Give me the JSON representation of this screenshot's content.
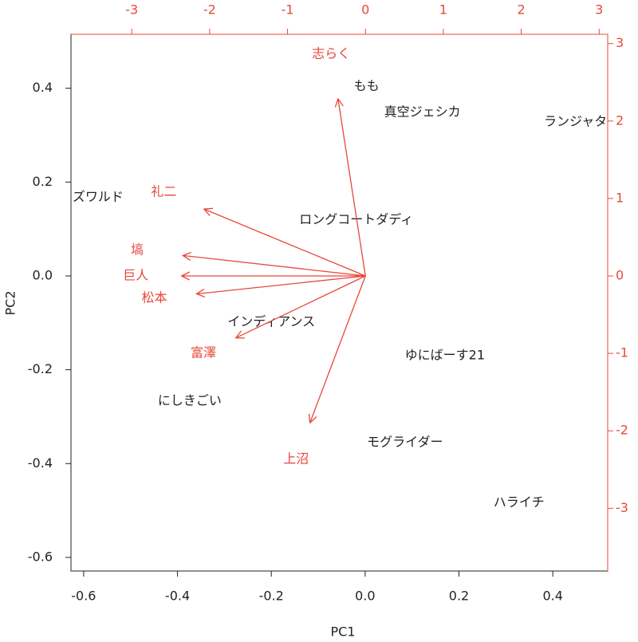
{
  "chart_data": {
    "type": "biplot",
    "x_label": "PC1",
    "y_label": "PC2",
    "xlim": [
      -0.627,
      0.517
    ],
    "ylim": [
      -0.629,
      0.515
    ],
    "xticks": [
      -0.6,
      -0.4,
      -0.2,
      {
        "value": 0,
        "label": "0.0"
      },
      0.2,
      0.4
    ],
    "yticks": [
      -0.6,
      -0.4,
      -0.2,
      {
        "value": 0,
        "label": "0.0"
      },
      0.2,
      0.4
    ],
    "x2lim": [
      -3.78,
      3.11
    ],
    "y2lim": [
      -3.81,
      3.12
    ],
    "x2ticks": [
      -3,
      -2,
      -1,
      0,
      1,
      2,
      3
    ],
    "y2ticks": [
      -3,
      -2,
      -1,
      0,
      1,
      2,
      3
    ],
    "observations": {
      "color": "#222222",
      "labels": [
        "もも",
        "真空ジェシカ",
        "ランジャタイ",
        "オズワルド",
        "ロングコートダディ",
        "インディアンス",
        "ゆにばーす21",
        "にしきごい",
        "モグライダー",
        "ハライチ"
      ],
      "x": [
        0.003,
        0.122,
        0.462,
        -0.583,
        -0.019,
        -0.2,
        0.17,
        -0.374,
        0.085,
        0.328
      ],
      "y": [
        0.404,
        0.348,
        0.328,
        0.167,
        0.119,
        -0.099,
        -0.17,
        -0.267,
        -0.355,
        -0.484
      ]
    },
    "variables": {
      "color": "#e8473a",
      "labels": [
        "志らく",
        "礼二",
        "塙",
        "巨人",
        "松本",
        "富澤",
        "上沼"
      ],
      "x": [
        -0.44,
        -2.59,
        -2.93,
        -2.95,
        -2.71,
        -2.08,
        -0.89
      ],
      "y": [
        2.86,
        1.08,
        0.33,
        0,
        -0.29,
        -1.0,
        -2.37
      ]
    }
  }
}
